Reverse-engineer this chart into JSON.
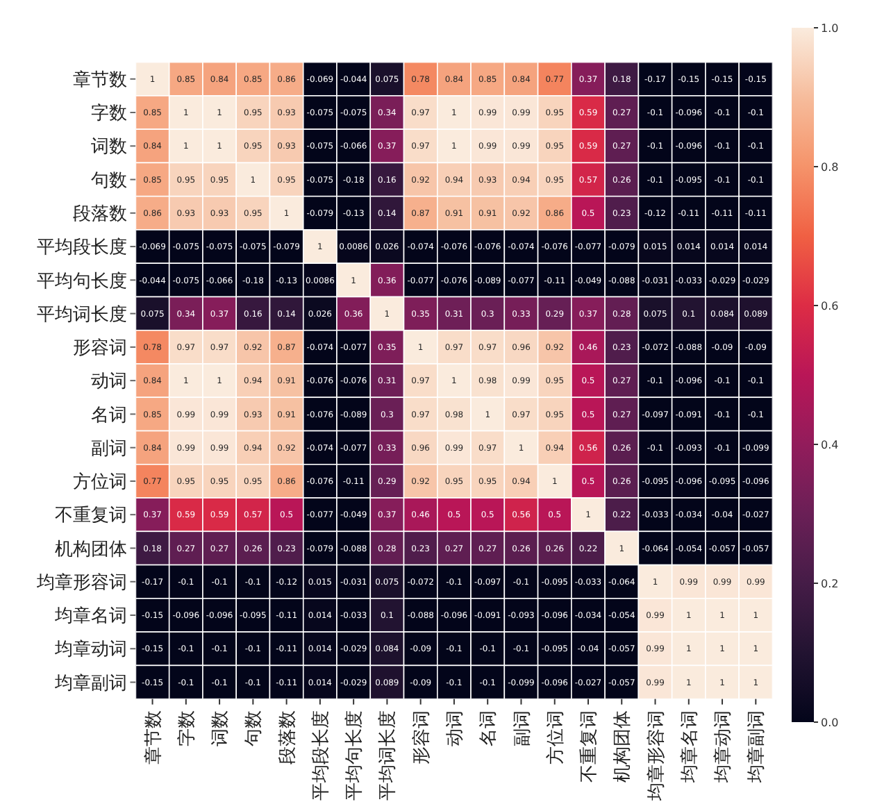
{
  "chart_data": {
    "type": "heatmap",
    "categories": [
      "章节数",
      "字数",
      "词数",
      "句数",
      "段落数",
      "平均段长度",
      "平均句长度",
      "平均词长度",
      "形容词",
      "动词",
      "名词",
      "副词",
      "方位词",
      "不重复词",
      "机构团体",
      "均章形容词",
      "均章名词",
      "均章动词",
      "均章副词"
    ],
    "y_categories": [
      "章节数",
      "字数",
      "词数",
      "句数",
      "段落数",
      "平均段长度",
      "平均句长度",
      "平均词长度",
      "形容词",
      "动词",
      "名词",
      "副词",
      "方位词",
      "不重复词",
      "机构团体",
      "均章形容词",
      "均章名词",
      "均章动词",
      "均章副词"
    ],
    "cells": [
      [
        1,
        0.85,
        0.84,
        0.85,
        0.86,
        -0.069,
        -0.044,
        0.075,
        0.78,
        0.84,
        0.85,
        0.84,
        0.77,
        0.37,
        0.18,
        -0.17,
        -0.15,
        -0.15,
        -0.15
      ],
      [
        0.85,
        1,
        1,
        0.95,
        0.93,
        -0.075,
        -0.075,
        0.34,
        0.97,
        1,
        0.99,
        0.99,
        0.95,
        0.59,
        0.27,
        -0.1,
        -0.096,
        -0.1,
        -0.1
      ],
      [
        0.84,
        1,
        1,
        0.95,
        0.93,
        -0.075,
        -0.066,
        0.37,
        0.97,
        1,
        0.99,
        0.99,
        0.95,
        0.59,
        0.27,
        -0.1,
        -0.096,
        -0.1,
        -0.1
      ],
      [
        0.85,
        0.95,
        0.95,
        1,
        0.95,
        -0.075,
        -0.18,
        0.16,
        0.92,
        0.94,
        0.93,
        0.94,
        0.95,
        0.57,
        0.26,
        -0.1,
        -0.095,
        -0.1,
        -0.1
      ],
      [
        0.86,
        0.93,
        0.93,
        0.95,
        1,
        -0.079,
        -0.13,
        0.14,
        0.87,
        0.91,
        0.91,
        0.92,
        0.86,
        0.5,
        0.23,
        -0.12,
        -0.11,
        -0.11,
        -0.11
      ],
      [
        -0.069,
        -0.075,
        -0.075,
        -0.075,
        -0.079,
        1,
        0.0086,
        0.026,
        -0.074,
        -0.076,
        -0.076,
        -0.074,
        -0.076,
        -0.077,
        -0.079,
        0.015,
        0.014,
        0.014,
        0.014
      ],
      [
        -0.044,
        -0.075,
        -0.066,
        -0.18,
        -0.13,
        0.0086,
        1,
        0.36,
        -0.077,
        -0.076,
        -0.089,
        -0.077,
        -0.11,
        -0.049,
        -0.088,
        -0.031,
        -0.033,
        -0.029,
        -0.029
      ],
      [
        0.075,
        0.34,
        0.37,
        0.16,
        0.14,
        0.026,
        0.36,
        1,
        0.35,
        0.31,
        0.3,
        0.33,
        0.29,
        0.37,
        0.28,
        0.075,
        0.1,
        0.084,
        0.089
      ],
      [
        0.78,
        0.97,
        0.97,
        0.92,
        0.87,
        -0.074,
        -0.077,
        0.35,
        1,
        0.97,
        0.97,
        0.96,
        0.92,
        0.46,
        0.23,
        -0.072,
        -0.088,
        -0.09,
        -0.09
      ],
      [
        0.84,
        1,
        1,
        0.94,
        0.91,
        -0.076,
        -0.076,
        0.31,
        0.97,
        1,
        0.98,
        0.99,
        0.95,
        0.5,
        0.27,
        -0.1,
        -0.096,
        -0.1,
        -0.1
      ],
      [
        0.85,
        0.99,
        0.99,
        0.93,
        0.91,
        -0.076,
        -0.089,
        0.3,
        0.97,
        0.98,
        1,
        0.97,
        0.95,
        0.5,
        0.27,
        -0.097,
        -0.091,
        -0.1,
        -0.1
      ],
      [
        0.84,
        0.99,
        0.99,
        0.94,
        0.92,
        -0.074,
        -0.077,
        0.33,
        0.96,
        0.99,
        0.97,
        1,
        0.94,
        0.56,
        0.26,
        -0.1,
        -0.093,
        -0.1,
        -0.099
      ],
      [
        0.77,
        0.95,
        0.95,
        0.95,
        0.86,
        -0.076,
        -0.11,
        0.29,
        0.92,
        0.95,
        0.95,
        0.94,
        1,
        0.5,
        0.26,
        -0.095,
        -0.096,
        -0.095,
        -0.096
      ],
      [
        0.37,
        0.59,
        0.59,
        0.57,
        0.5,
        -0.077,
        -0.049,
        0.37,
        0.46,
        0.5,
        0.5,
        0.56,
        0.5,
        1,
        0.22,
        -0.033,
        -0.034,
        -0.04,
        -0.027
      ],
      [
        0.18,
        0.27,
        0.27,
        0.26,
        0.23,
        -0.079,
        -0.088,
        0.28,
        0.23,
        0.27,
        0.27,
        0.26,
        0.26,
        0.22,
        1,
        -0.064,
        -0.054,
        -0.057,
        -0.057
      ],
      [
        -0.17,
        -0.1,
        -0.1,
        -0.1,
        -0.12,
        0.015,
        -0.031,
        0.075,
        -0.072,
        -0.1,
        -0.097,
        -0.1,
        -0.095,
        -0.033,
        -0.064,
        1,
        0.99,
        0.99,
        0.99
      ],
      [
        -0.15,
        -0.096,
        -0.096,
        -0.095,
        -0.11,
        0.014,
        -0.033,
        0.1,
        -0.088,
        -0.096,
        -0.091,
        -0.093,
        -0.096,
        -0.034,
        -0.054,
        0.99,
        1,
        1,
        1
      ],
      [
        -0.15,
        -0.1,
        -0.1,
        -0.1,
        -0.11,
        0.014,
        -0.029,
        0.084,
        -0.09,
        -0.1,
        -0.1,
        -0.1,
        -0.095,
        -0.04,
        -0.057,
        0.99,
        1,
        1,
        1
      ],
      [
        -0.15,
        -0.1,
        -0.1,
        -0.1,
        -0.11,
        0.014,
        -0.029,
        0.089,
        -0.09,
        -0.1,
        -0.1,
        -0.099,
        -0.096,
        -0.027,
        -0.057,
        0.99,
        1,
        1,
        1
      ]
    ],
    "data_labels": true,
    "clim": [
      0,
      1
    ],
    "cticks": [
      {
        "value": 0,
        "label": "0.0"
      },
      {
        "value": 0.2,
        "label": "0.2"
      },
      {
        "value": 0.4,
        "label": "0.4"
      },
      {
        "value": 0.6,
        "label": "0.6"
      },
      {
        "value": 0.8,
        "label": "0.8"
      },
      {
        "value": 1,
        "label": "1.0"
      }
    ]
  }
}
